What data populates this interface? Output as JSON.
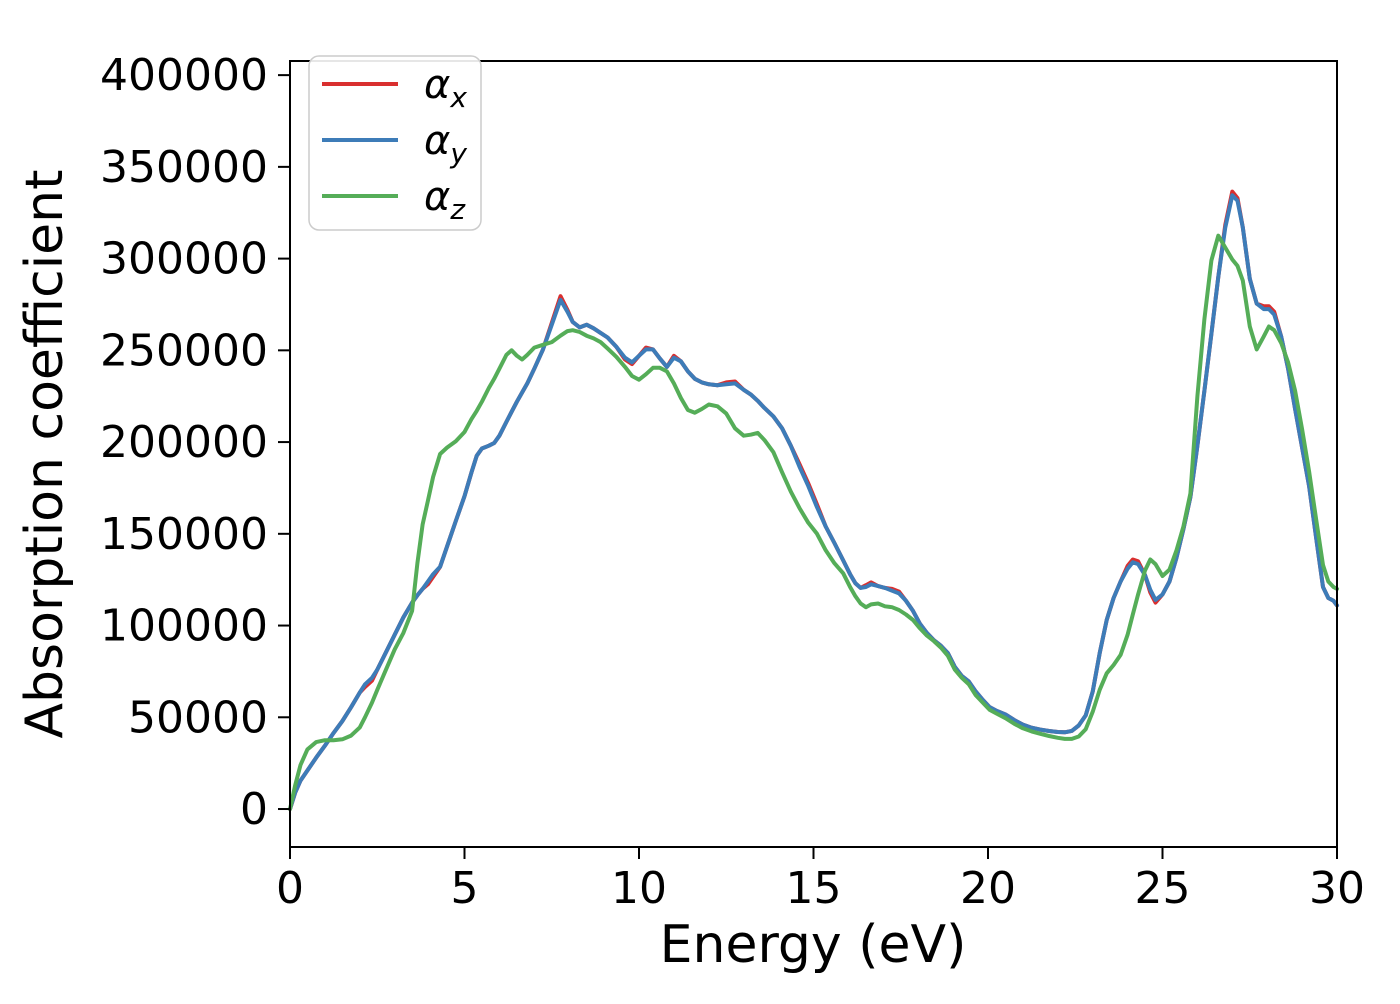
{
  "chart_data": {
    "type": "line",
    "title": "",
    "xlabel": "Energy (eV)",
    "ylabel": "Absorption coefficient",
    "xlim": [
      0,
      30
    ],
    "ylim": [
      -20700,
      407700
    ],
    "x_ticks": [
      0,
      5,
      10,
      15,
      20,
      25,
      30
    ],
    "y_ticks": [
      0,
      50000,
      100000,
      150000,
      200000,
      250000,
      300000,
      350000,
      400000
    ],
    "grid": false,
    "legend_position": "upper left",
    "x": [
      0,
      0.15,
      0.3,
      0.5,
      0.75,
      1,
      1.25,
      1.5,
      1.75,
      2,
      2.15,
      2.35,
      2.5,
      2.75,
      3,
      3.25,
      3.5,
      3.65,
      3.8,
      3.95,
      4.1,
      4.3,
      4.5,
      4.75,
      5,
      5.2,
      5.35,
      5.5,
      5.7,
      5.85,
      6,
      6.2,
      6.35,
      6.5,
      6.65,
      6.8,
      7,
      7.25,
      7.5,
      7.75,
      7.95,
      8.1,
      8.3,
      8.5,
      8.7,
      8.9,
      9.1,
      9.35,
      9.6,
      9.8,
      10,
      10.2,
      10.4,
      10.6,
      10.8,
      11,
      11.2,
      11.4,
      11.6,
      11.8,
      12,
      12.25,
      12.5,
      12.75,
      13,
      13.2,
      13.4,
      13.6,
      13.85,
      14.1,
      14.35,
      14.6,
      14.85,
      15.1,
      15.35,
      15.6,
      15.85,
      16.05,
      16.2,
      16.35,
      16.5,
      16.65,
      16.85,
      17.05,
      17.25,
      17.45,
      17.65,
      17.85,
      18.05,
      18.25,
      18.45,
      18.65,
      18.85,
      19.05,
      19.25,
      19.45,
      19.65,
      19.85,
      20.05,
      20.25,
      20.5,
      20.75,
      21,
      21.25,
      21.5,
      21.75,
      22,
      22.2,
      22.4,
      22.6,
      22.8,
      23,
      23.2,
      23.4,
      23.6,
      23.8,
      24,
      24.15,
      24.3,
      24.5,
      24.65,
      24.8,
      25,
      25.2,
      25.4,
      25.6,
      25.8,
      26,
      26.2,
      26.4,
      26.6,
      26.8,
      27,
      27.15,
      27.3,
      27.5,
      27.7,
      27.9,
      28.05,
      28.2,
      28.4,
      28.6,
      28.8,
      29,
      29.2,
      29.4,
      29.6,
      29.75,
      29.9,
      30
    ],
    "series": [
      {
        "name": "αx",
        "color": "#d92f2f",
        "values": [
          0,
          9000,
          15500,
          21000,
          28000,
          34500,
          41500,
          48000,
          55500,
          63500,
          66500,
          70000,
          76000,
          85500,
          95000,
          104500,
          112500,
          116500,
          120000,
          122500,
          126500,
          132000,
          143000,
          157000,
          170500,
          183500,
          192500,
          196500,
          198000,
          199500,
          203500,
          211000,
          216500,
          222000,
          227000,
          232000,
          240000,
          250500,
          265000,
          279500,
          272000,
          265500,
          262500,
          264000,
          262000,
          259500,
          257000,
          252000,
          245000,
          242500,
          247000,
          251500,
          250500,
          245500,
          241000,
          247000,
          244000,
          238500,
          234500,
          232500,
          231500,
          231000,
          232500,
          233000,
          228500,
          226000,
          222500,
          218500,
          214000,
          207500,
          198000,
          188000,
          177500,
          166000,
          154000,
          145000,
          135500,
          128000,
          123000,
          120500,
          122000,
          123500,
          121500,
          120500,
          120000,
          118500,
          113500,
          108000,
          101000,
          96000,
          92000,
          89000,
          85000,
          77500,
          72500,
          69500,
          64000,
          59500,
          55500,
          53500,
          51500,
          48500,
          46000,
          44300,
          43300,
          42500,
          42000,
          41800,
          42600,
          45500,
          51000,
          64000,
          85000,
          103000,
          115000,
          124000,
          132500,
          136000,
          135000,
          127500,
          118000,
          112500,
          117000,
          124000,
          137000,
          152500,
          170000,
          198000,
          228000,
          259000,
          290000,
          318500,
          336500,
          333000,
          317000,
          289000,
          275500,
          274000,
          274000,
          271000,
          257500,
          240000,
          218000,
          197000,
          176000,
          148000,
          121000,
          115000,
          113500,
          111000
        ]
      },
      {
        "name": "αy",
        "color": "#3d7cb8",
        "values": [
          0,
          9000,
          15500,
          21000,
          28000,
          34500,
          41500,
          48000,
          55500,
          63500,
          68000,
          71500,
          76000,
          85500,
          95000,
          104500,
          112500,
          116500,
          120000,
          124000,
          128000,
          132000,
          143000,
          157000,
          170500,
          183500,
          192500,
          196500,
          198000,
          199500,
          203500,
          211000,
          216500,
          222000,
          227000,
          232000,
          240000,
          250500,
          264000,
          277500,
          271000,
          265500,
          262500,
          264000,
          262000,
          259500,
          257000,
          252000,
          246000,
          243500,
          247000,
          250500,
          250500,
          245500,
          241000,
          246000,
          244000,
          238500,
          234500,
          232500,
          231500,
          231000,
          231500,
          232000,
          228500,
          226000,
          222500,
          218500,
          214000,
          207500,
          198000,
          186500,
          176000,
          164500,
          154000,
          145000,
          135500,
          128000,
          123000,
          120500,
          121000,
          122500,
          121500,
          120500,
          119000,
          117500,
          113500,
          108000,
          101000,
          96000,
          92000,
          89000,
          85000,
          77500,
          72500,
          69500,
          64000,
          59500,
          55500,
          53500,
          51500,
          48500,
          46000,
          44300,
          43300,
          42500,
          42000,
          41800,
          42600,
          45500,
          51000,
          64000,
          85000,
          103000,
          115000,
          124000,
          131000,
          134500,
          133500,
          127500,
          119500,
          114000,
          117000,
          124000,
          137000,
          152500,
          170000,
          198000,
          228000,
          259000,
          290000,
          317000,
          334500,
          331500,
          317000,
          289000,
          275500,
          272500,
          272500,
          269500,
          257500,
          240000,
          218000,
          197000,
          176000,
          148000,
          121000,
          115000,
          113500,
          111000
        ]
      },
      {
        "name": "αz",
        "color": "#55ad58",
        "values": [
          0,
          13000,
          24000,
          32500,
          36500,
          37500,
          37500,
          38000,
          40000,
          44500,
          50000,
          58000,
          65000,
          76000,
          87000,
          96000,
          108000,
          134000,
          155000,
          168000,
          181000,
          193500,
          197000,
          200500,
          205500,
          212500,
          217000,
          222000,
          229500,
          234500,
          240000,
          247500,
          250000,
          247000,
          245000,
          247500,
          251500,
          253000,
          254500,
          258000,
          260500,
          261000,
          260000,
          258000,
          256500,
          254500,
          251000,
          246500,
          241000,
          236000,
          234000,
          237000,
          240500,
          240500,
          238500,
          232000,
          224000,
          217500,
          216000,
          218000,
          220500,
          219500,
          215500,
          207500,
          203500,
          204000,
          205000,
          201000,
          194500,
          183500,
          173000,
          164000,
          156000,
          150000,
          141000,
          134000,
          128500,
          121000,
          116000,
          112000,
          110000,
          111500,
          112000,
          110500,
          110000,
          108500,
          106000,
          103000,
          98500,
          94500,
          91500,
          88000,
          83500,
          76000,
          71500,
          68000,
          62000,
          58000,
          54000,
          52000,
          49500,
          46500,
          44000,
          42300,
          41000,
          39800,
          38800,
          38200,
          38200,
          39500,
          43500,
          53000,
          65000,
          74000,
          78500,
          84000,
          95000,
          106000,
          117000,
          130000,
          136000,
          133500,
          127000,
          130500,
          141000,
          154000,
          172000,
          225000,
          267000,
          299000,
          312500,
          306000,
          299500,
          296000,
          288000,
          263000,
          250500,
          257500,
          263000,
          261000,
          254000,
          243500,
          228000,
          207000,
          184000,
          158000,
          133000,
          124000,
          121000,
          120000
        ]
      }
    ]
  },
  "legend": {
    "items": [
      {
        "label": "αx",
        "base": "α",
        "sub": "x"
      },
      {
        "label": "αy",
        "base": "α",
        "sub": "y"
      },
      {
        "label": "αz",
        "base": "α",
        "sub": "z"
      }
    ]
  }
}
